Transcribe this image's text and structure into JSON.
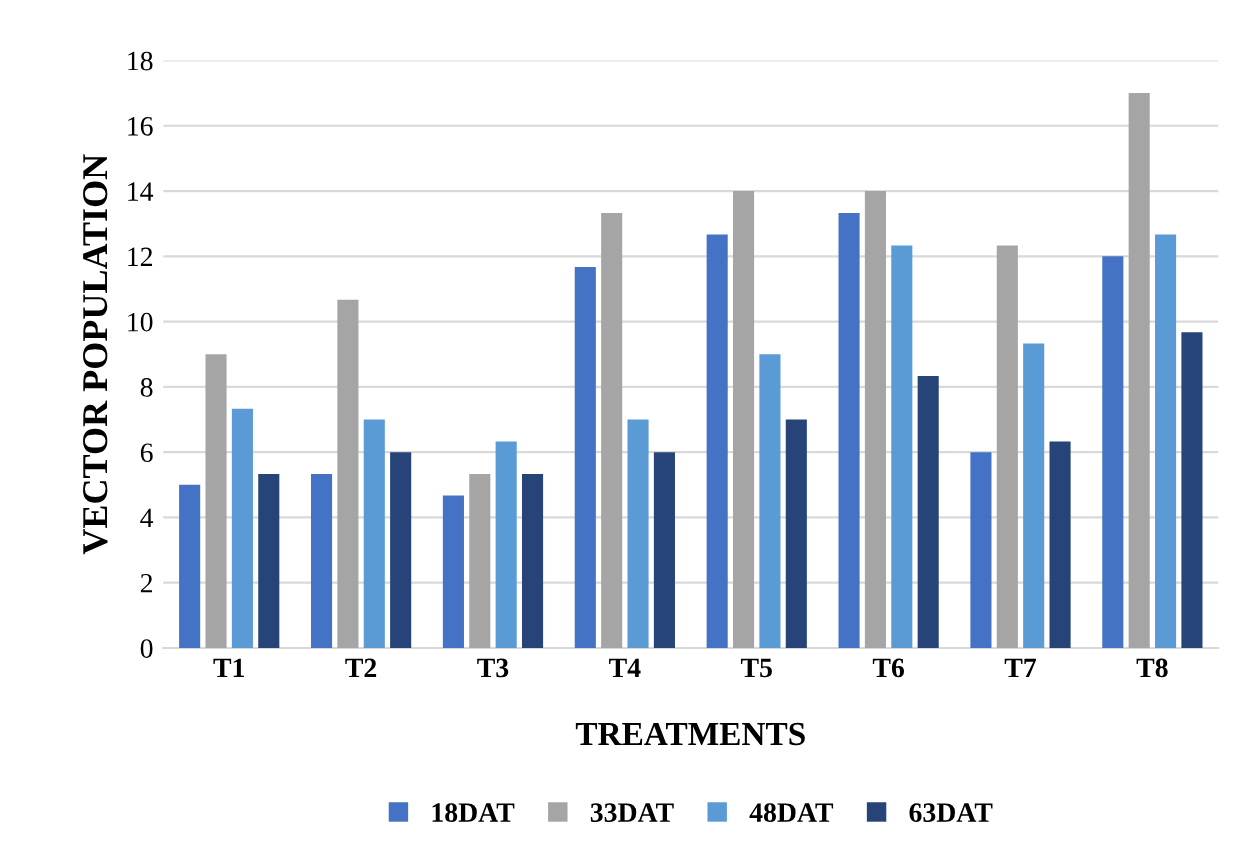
{
  "chart_data": {
    "type": "bar",
    "xlabel": "TREATMENTS",
    "ylabel": "VECTOR POPULATION",
    "categories": [
      "T1",
      "T2",
      "T3",
      "T4",
      "T5",
      "T6",
      "T7",
      "T8"
    ],
    "series": [
      {
        "name": "18DAT",
        "color": "#4472c4",
        "values": [
          5,
          5.33,
          4.67,
          11.67,
          12.67,
          13.33,
          6,
          12
        ]
      },
      {
        "name": "33DAT",
        "color": "#a5a5a5",
        "values": [
          9,
          10.67,
          5.33,
          13.33,
          14,
          14,
          12.33,
          17
        ]
      },
      {
        "name": "48DAT",
        "color": "#5b9bd5",
        "values": [
          7.33,
          7,
          6.33,
          7,
          9,
          12.33,
          9.33,
          12.67
        ]
      },
      {
        "name": "63DAT",
        "color": "#264478",
        "values": [
          5.33,
          6,
          5.33,
          6,
          7,
          8.33,
          6.33,
          9.67
        ]
      }
    ],
    "ylim": [
      0,
      18
    ],
    "yticks": [
      0,
      2,
      4,
      6,
      8,
      10,
      12,
      14,
      16,
      18
    ],
    "grid": "y",
    "legend": "bottom"
  }
}
